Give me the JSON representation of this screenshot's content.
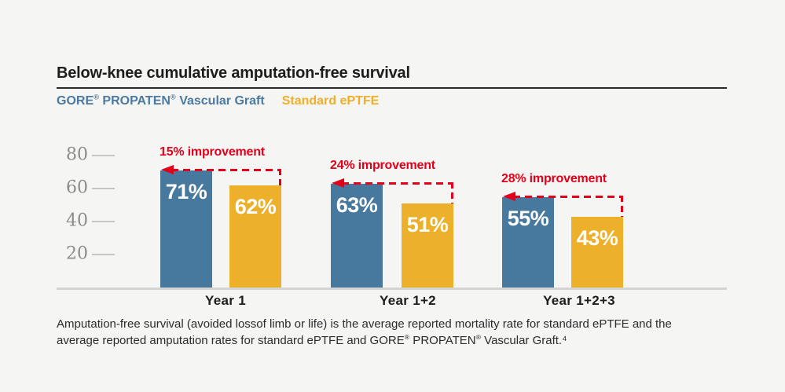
{
  "header": {
    "title": "Below-knee cumulative amputation-free survival"
  },
  "legend": [
    {
      "label": "GORE® PROPATEN® Vascular Graft",
      "color": "#4b7aa1"
    },
    {
      "label": "Standard ePTFE",
      "color": "#efaf2c"
    }
  ],
  "chart_data": {
    "type": "bar",
    "title": "Below-knee cumulative amputation-free survival",
    "categories": [
      "Year 1",
      "Year 1+2",
      "Year 1+2+3"
    ],
    "series": [
      {
        "name": "GORE® PROPATEN® Vascular Graft",
        "color": "#47789e",
        "values": [
          71,
          63,
          55
        ],
        "labels": [
          "71%",
          "63%",
          "55%"
        ]
      },
      {
        "name": "Standard ePTFE",
        "color": "#edb02a",
        "values": [
          62,
          51,
          43
        ],
        "labels": [
          "62%",
          "51%",
          "43%"
        ]
      }
    ],
    "annotations": [
      "15% improvement",
      "24% improvement",
      "28% improvement"
    ],
    "annotation_color": "#e2001a",
    "yticks": [
      20,
      40,
      60,
      80
    ],
    "ylim": [
      0,
      87
    ],
    "unit": "%",
    "grid": false,
    "legend_position": "top-left"
  },
  "footnote": {
    "line1": "Amputation-free survival (avoided lossof limb or life) is the average reported mortality rate for standard ePTFE and the",
    "line2": "average reported amputation rates for standard ePTFE and GORE® PROPATEN® Vascular Graft.⁴"
  }
}
